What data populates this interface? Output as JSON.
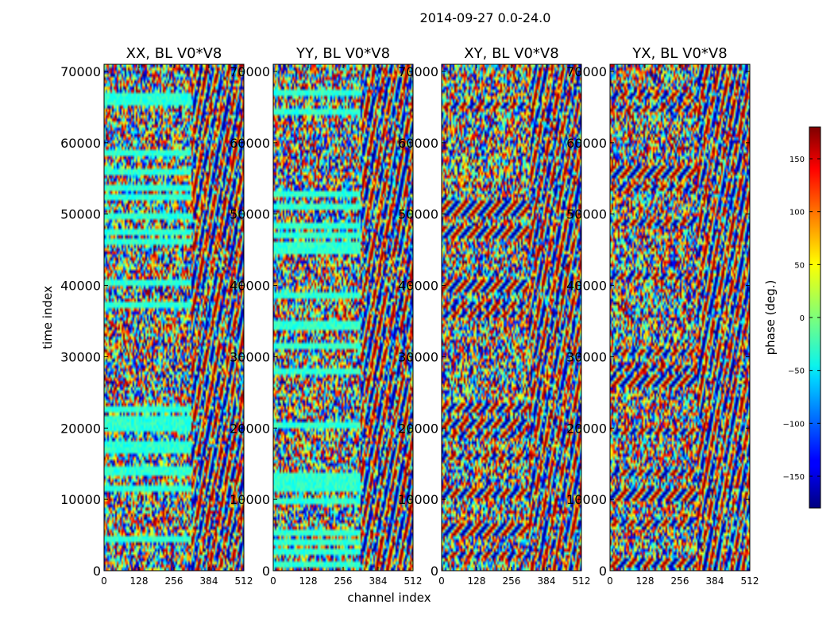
{
  "chart_data": {
    "type": "heatmap",
    "title": "2014-09-27 0.0-24.0",
    "xlabel": "channel index",
    "ylabel": "time index",
    "xlim": [
      0,
      512
    ],
    "ylim": [
      0,
      71000
    ],
    "x_ticks": [
      0,
      128,
      256,
      384,
      512
    ],
    "y_ticks": [
      0,
      10000,
      20000,
      30000,
      40000,
      50000,
      60000,
      70000
    ],
    "panels": [
      {
        "title": "XX, BL V0*V8",
        "pol": "XX"
      },
      {
        "title": "YY, BL V0*V8",
        "pol": "YY"
      },
      {
        "title": "XY, BL V0*V8",
        "pol": "XY"
      },
      {
        "title": "YX, BL V0*V8",
        "pol": "YX"
      }
    ],
    "colorbar": {
      "label": "phase (deg.)",
      "range": [
        -180,
        180
      ],
      "ticks": [
        -150,
        -100,
        -50,
        0,
        50,
        100,
        150
      ],
      "tick_labels": [
        "−150",
        "−100",
        "−50",
        "0",
        "50",
        "100",
        "150"
      ],
      "colormap": "jet"
    },
    "value_note": "Phase values per (channel, time) cell range over [-180, 180] degrees; rendered as noisy jet-colormap texture."
  }
}
